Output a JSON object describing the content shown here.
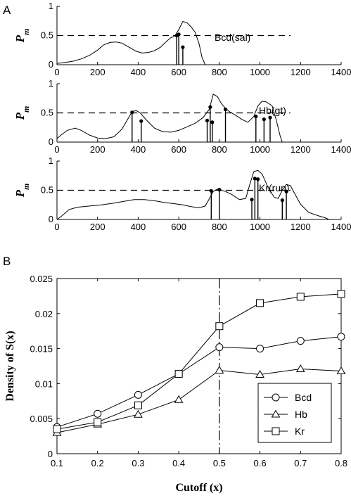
{
  "figure": {
    "panel_a_letter": "A",
    "panel_b_letter": "B"
  },
  "chart_data": [
    {
      "type": "line",
      "annotation": "Bcd(sal)",
      "ylabel": "P",
      "ylabel_sub": "m",
      "xlim": [
        0,
        1400
      ],
      "ylim": [
        0,
        1
      ],
      "xticks": [
        0,
        200,
        400,
        600,
        800,
        1000,
        1200,
        1400
      ],
      "yticks": [
        0,
        0.5,
        1
      ],
      "threshold": 0.5,
      "curve": [
        [
          0,
          0.02
        ],
        [
          40,
          0.04
        ],
        [
          80,
          0.06
        ],
        [
          120,
          0.1
        ],
        [
          160,
          0.16
        ],
        [
          200,
          0.25
        ],
        [
          230,
          0.34
        ],
        [
          260,
          0.38
        ],
        [
          290,
          0.39
        ],
        [
          320,
          0.37
        ],
        [
          360,
          0.29
        ],
        [
          390,
          0.23
        ],
        [
          420,
          0.2
        ],
        [
          450,
          0.21
        ],
        [
          480,
          0.24
        ],
        [
          510,
          0.3
        ],
        [
          540,
          0.4
        ],
        [
          560,
          0.46
        ],
        [
          580,
          0.49
        ],
        [
          600,
          0.6
        ],
        [
          620,
          0.74
        ],
        [
          640,
          0.72
        ],
        [
          660,
          0.65
        ],
        [
          680,
          0.56
        ],
        [
          700,
          0.36
        ],
        [
          715,
          0.12
        ],
        [
          730,
          0.0
        ]
      ],
      "stems": [
        [
          590,
          0.5
        ],
        [
          600,
          0.52
        ],
        [
          620,
          0.3
        ]
      ],
      "grid": false
    },
    {
      "type": "line",
      "annotation": "Hb(gt)",
      "ylabel": "P",
      "ylabel_sub": "m",
      "xlim": [
        0,
        1400
      ],
      "ylim": [
        0,
        1
      ],
      "xticks": [
        0,
        200,
        400,
        600,
        800,
        1000,
        1200,
        1400
      ],
      "yticks": [
        0,
        0.5,
        1
      ],
      "threshold": 0.5,
      "curve": [
        [
          0,
          0.06
        ],
        [
          20,
          0.12
        ],
        [
          50,
          0.2
        ],
        [
          90,
          0.24
        ],
        [
          120,
          0.2
        ],
        [
          160,
          0.12
        ],
        [
          200,
          0.07
        ],
        [
          240,
          0.06
        ],
        [
          280,
          0.09
        ],
        [
          320,
          0.22
        ],
        [
          350,
          0.4
        ],
        [
          370,
          0.52
        ],
        [
          390,
          0.54
        ],
        [
          410,
          0.5
        ],
        [
          440,
          0.38
        ],
        [
          480,
          0.24
        ],
        [
          520,
          0.18
        ],
        [
          560,
          0.17
        ],
        [
          600,
          0.2
        ],
        [
          640,
          0.26
        ],
        [
          680,
          0.32
        ],
        [
          720,
          0.42
        ],
        [
          750,
          0.56
        ],
        [
          770,
          0.82
        ],
        [
          790,
          0.78
        ],
        [
          810,
          0.66
        ],
        [
          830,
          0.58
        ],
        [
          850,
          0.52
        ],
        [
          880,
          0.46
        ],
        [
          910,
          0.39
        ],
        [
          940,
          0.34
        ],
        [
          970,
          0.44
        ],
        [
          990,
          0.62
        ],
        [
          1010,
          0.7
        ],
        [
          1030,
          0.69
        ],
        [
          1060,
          0.62
        ],
        [
          1080,
          0.38
        ],
        [
          1100,
          0.1
        ],
        [
          1110,
          0.0
        ]
      ],
      "stems": [
        [
          370,
          0.51
        ],
        [
          415,
          0.36
        ],
        [
          740,
          0.37
        ],
        [
          755,
          0.6
        ],
        [
          765,
          0.34
        ],
        [
          830,
          0.56
        ],
        [
          980,
          0.44
        ],
        [
          1020,
          0.39
        ],
        [
          1050,
          0.42
        ]
      ],
      "grid": false
    },
    {
      "type": "line",
      "annotation": "Kr(run)",
      "ylabel": "P",
      "ylabel_sub": "m",
      "xlim": [
        0,
        1400
      ],
      "ylim": [
        0,
        1
      ],
      "xticks": [
        0,
        200,
        400,
        600,
        800,
        1000,
        1200,
        1400
      ],
      "yticks": [
        0,
        0.5,
        1
      ],
      "threshold": 0.5,
      "curve": [
        [
          0,
          0.0
        ],
        [
          20,
          0.05
        ],
        [
          60,
          0.17
        ],
        [
          100,
          0.21
        ],
        [
          160,
          0.23
        ],
        [
          220,
          0.25
        ],
        [
          280,
          0.28
        ],
        [
          330,
          0.31
        ],
        [
          380,
          0.34
        ],
        [
          430,
          0.34
        ],
        [
          480,
          0.32
        ],
        [
          530,
          0.29
        ],
        [
          580,
          0.27
        ],
        [
          620,
          0.25
        ],
        [
          660,
          0.22
        ],
        [
          700,
          0.2
        ],
        [
          730,
          0.23
        ],
        [
          750,
          0.35
        ],
        [
          770,
          0.48
        ],
        [
          790,
          0.52
        ],
        [
          810,
          0.5
        ],
        [
          830,
          0.48
        ],
        [
          860,
          0.43
        ],
        [
          900,
          0.34
        ],
        [
          930,
          0.36
        ],
        [
          950,
          0.6
        ],
        [
          970,
          0.82
        ],
        [
          990,
          0.84
        ],
        [
          1010,
          0.78
        ],
        [
          1040,
          0.55
        ],
        [
          1070,
          0.38
        ],
        [
          1090,
          0.36
        ],
        [
          1110,
          0.5
        ],
        [
          1130,
          0.6
        ],
        [
          1150,
          0.58
        ],
        [
          1170,
          0.45
        ],
        [
          1200,
          0.26
        ],
        [
          1240,
          0.12
        ],
        [
          1290,
          0.06
        ],
        [
          1320,
          0.03
        ],
        [
          1340,
          0.0
        ]
      ],
      "stems": [
        [
          760,
          0.49
        ],
        [
          800,
          0.51
        ],
        [
          960,
          0.34
        ],
        [
          975,
          0.7
        ],
        [
          990,
          0.69
        ],
        [
          1110,
          0.33
        ],
        [
          1130,
          0.48
        ]
      ],
      "grid": false
    },
    {
      "type": "line",
      "xlabel": "Cutoff (x)",
      "ylabel": "Density of S(x)",
      "xlim": [
        0.1,
        0.8
      ],
      "ylim": [
        0,
        0.025
      ],
      "xticks": [
        "0.1",
        "0.2",
        "0.3",
        "0.4",
        "0.5",
        "0.6",
        "0.7",
        "0.8"
      ],
      "yticks": [
        "0",
        "0.005",
        "0.01",
        "0.015",
        "0.02",
        "0.025"
      ],
      "reference_x": 0.5,
      "legend_position": "bottom-right",
      "grid": false,
      "x": [
        0.1,
        0.2,
        0.3,
        0.4,
        0.5,
        0.6,
        0.7,
        0.8
      ],
      "series": [
        {
          "name": "Bcd",
          "marker": "circle",
          "values": [
            0.0038,
            0.0057,
            0.0084,
            0.0114,
            0.0152,
            0.015,
            0.0161,
            0.0167
          ]
        },
        {
          "name": "Hb",
          "marker": "triangle",
          "values": [
            0.003,
            0.0042,
            0.0056,
            0.0077,
            0.0119,
            0.0113,
            0.0121,
            0.0118
          ]
        },
        {
          "name": "Kr",
          "marker": "square",
          "values": [
            0.0035,
            0.0045,
            0.0069,
            0.0114,
            0.0182,
            0.0215,
            0.0224,
            0.0228
          ]
        }
      ]
    }
  ]
}
